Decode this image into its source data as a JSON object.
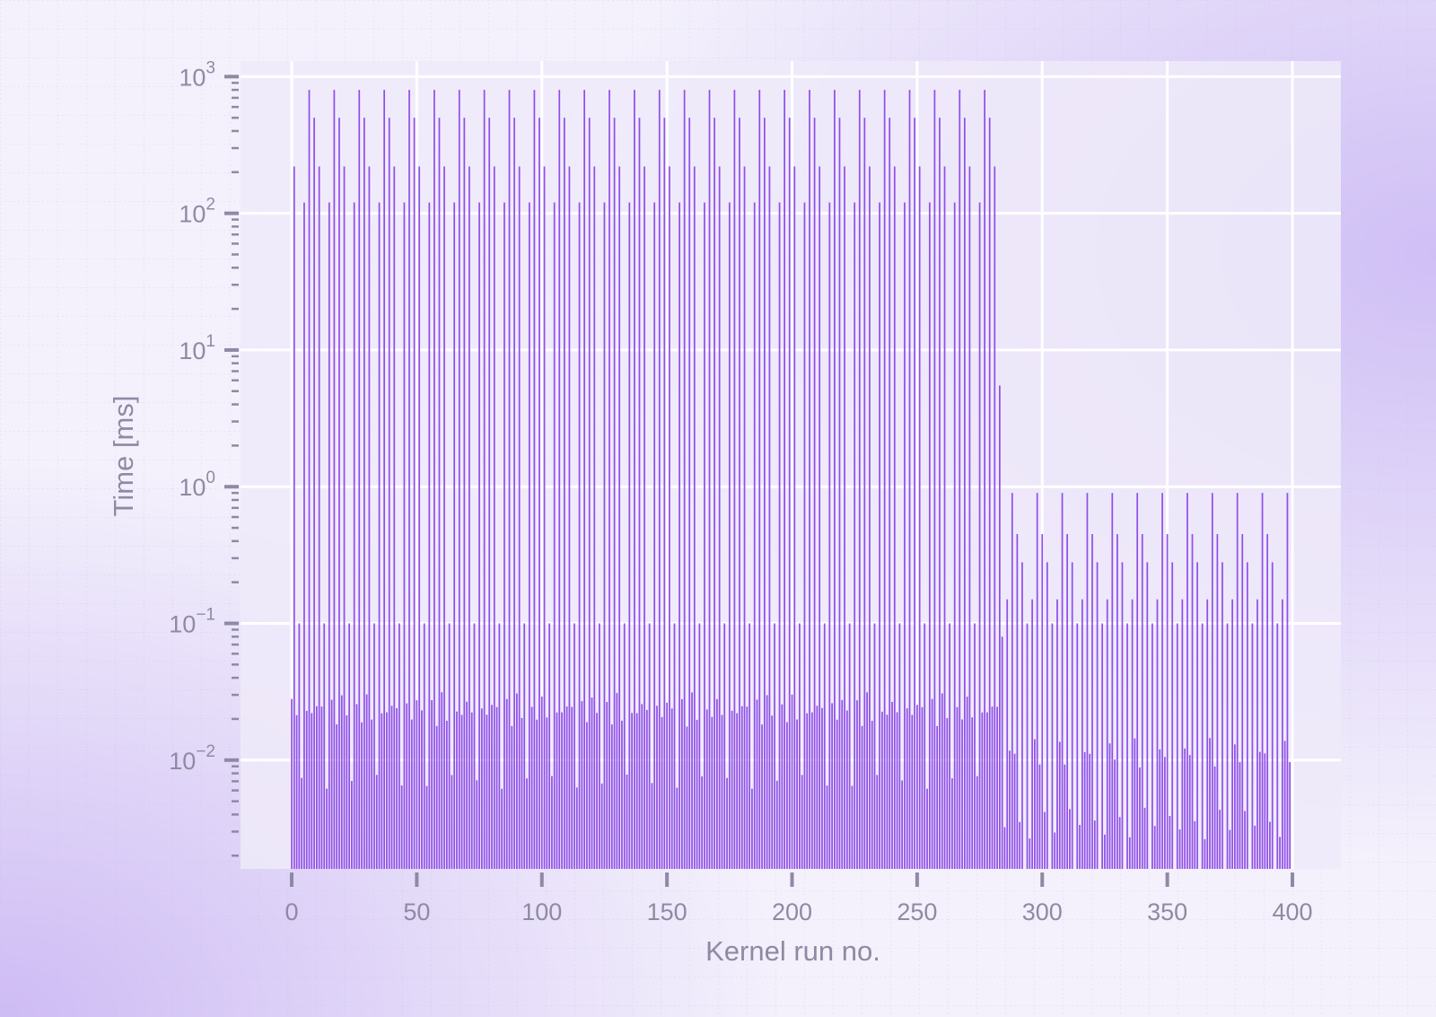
{
  "colors": {
    "bar": "#9050e8",
    "grid": "#ffffff",
    "text": "#8f8aa4",
    "plot_bg": "#efeaf9",
    "accent_glow": "#c8b4f2"
  },
  "chart_data": {
    "type": "bar",
    "xlabel": "Kernel run no.",
    "ylabel": "Time [ms]",
    "yscale": "log",
    "xlim": [
      -20,
      420
    ],
    "ylim": [
      0.0016,
      1300
    ],
    "xticks": [
      0,
      50,
      100,
      150,
      200,
      250,
      300,
      350,
      400
    ],
    "yticks": [
      {
        "value": 0.01,
        "base": "10",
        "exp": "−2"
      },
      {
        "value": 0.1,
        "base": "10",
        "exp": "−1"
      },
      {
        "value": 1,
        "base": "10",
        "exp": "0"
      },
      {
        "value": 10,
        "base": "10",
        "exp": "1"
      },
      {
        "value": 100,
        "base": "10",
        "exp": "2"
      },
      {
        "value": 1000,
        "base": "10",
        "exp": "3"
      }
    ],
    "grid": true,
    "legend": "none",
    "segments": [
      {
        "runs": [
          0,
          282
        ],
        "period": 10,
        "cycle_values": [
          0.028,
          220,
          0.022,
          0.1,
          0.007,
          120,
          0.025,
          800,
          0.02,
          500
        ],
        "note_values_ms": "repeating burst pattern"
      },
      {
        "runs": [
          283,
          399
        ],
        "period": 10,
        "cycle_values": [
          0.0012,
          0.1,
          0.003,
          0.15,
          0.013,
          0.9,
          0.01,
          0.45,
          0.004,
          0.28
        ],
        "note_values_ms": "repeating burst pattern"
      }
    ],
    "special_points": [
      {
        "x": 283,
        "y": 5.5
      },
      {
        "x": 284,
        "y": 0.08
      }
    ]
  }
}
